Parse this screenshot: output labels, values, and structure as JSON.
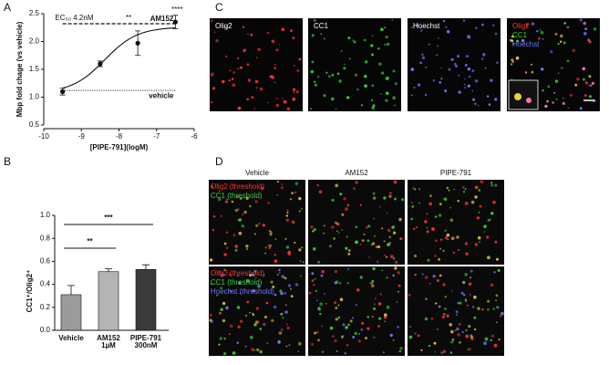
{
  "panel_labels": [
    "A",
    "B",
    "C",
    "D"
  ],
  "chart_data": [
    {
      "type": "scatter",
      "xlabel": "[PIPE-791](logM)",
      "ylabel": "Mbp fold chage (vs vehicle)",
      "x": [
        -9.5,
        -8.5,
        -7.5,
        -6.5
      ],
      "values": [
        1.1,
        1.6,
        1.97,
        2.35
      ],
      "errors": [
        0.06,
        0.05,
        0.22,
        0.12
      ],
      "color": "#111111",
      "fit": {
        "bottom": 1.08,
        "top": 2.26,
        "log_ec50": -8.38,
        "hill": 1
      },
      "reference_lines": [
        {
          "label": "AM152",
          "value": 2.32,
          "style": "dashed"
        },
        {
          "label": "vehicle",
          "value": 1.12,
          "style": "dotted"
        }
      ],
      "ec50_label": "EC₅₀ 4.2nM",
      "significance": [
        "**",
        "****"
      ],
      "xlim": [
        -10,
        -6
      ],
      "xticks": [
        -10,
        -9,
        -8,
        -7,
        -6
      ],
      "ylim": [
        0.5,
        2.5
      ],
      "yticks": [
        0.5,
        {
          "value": 1,
          "label": "1.0"
        },
        1.5,
        {
          "value": 2,
          "label": "2.0"
        },
        2.5
      ]
    },
    {
      "type": "bar",
      "ylabel": "CC1⁺/Olig2⁺",
      "categories": [
        "Vehicle",
        "AM152",
        "PIPE-791"
      ],
      "doses": [
        null,
        "1µM",
        "300nM"
      ],
      "values": [
        0.31,
        0.51,
        0.53
      ],
      "errors": [
        0.08,
        0.025,
        0.04
      ],
      "colors": [
        "#9b9b9b",
        "#b4b4b4",
        "#3a3a3a"
      ],
      "brackets": [
        {
          "from": 0,
          "to": 1,
          "label": "**"
        },
        {
          "from": 0,
          "to": 2,
          "label": "***"
        }
      ],
      "ylim": [
        0,
        1
      ],
      "yticks": [
        {
          "value": 0,
          "label": "0.0"
        },
        0.2,
        0.4,
        0.6,
        0.8,
        {
          "value": 1,
          "label": "1.0"
        }
      ]
    }
  ],
  "panel_c": {
    "channels": [
      "Olig2",
      "CC1",
      "Hoechst"
    ],
    "channel_colors": [
      "#ff3434",
      "#3cd23c",
      "#6a7cff"
    ]
  },
  "panel_d": {
    "columns": [
      "Vehicle",
      "AM152",
      "PIPE-791"
    ],
    "top_row_labels": [
      "Olig2 (threshold)",
      "CC1 (threshold)"
    ],
    "bottom_row_labels": [
      "Olig2 (threshold)",
      "CC1 (threshold)",
      "Hoechst (threshold)"
    ]
  }
}
